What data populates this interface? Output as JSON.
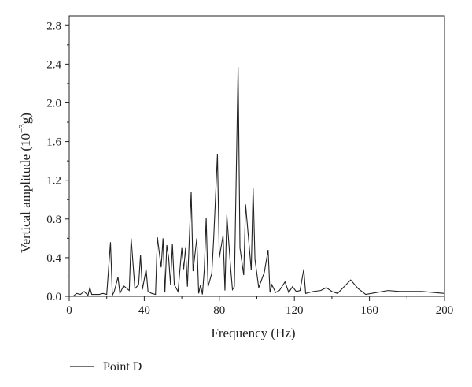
{
  "chart_data": {
    "type": "line",
    "title": "",
    "xlabel": "Frequency (Hz)",
    "ylabel_main": "Vertical amplitude (10",
    "ylabel_exp": "−3",
    "ylabel_tail": "g)",
    "xlim": [
      0,
      200
    ],
    "ylim": [
      0,
      2.9
    ],
    "x_ticks": [
      0,
      40,
      80,
      120,
      160,
      200
    ],
    "x_tick_labels": [
      "0",
      "40",
      "80",
      "120",
      "160",
      "200"
    ],
    "y_ticks": [
      0.0,
      0.4,
      0.8,
      1.2,
      1.6,
      2.0,
      2.4,
      2.8
    ],
    "y_tick_labels": [
      "0.0",
      "0.4",
      "0.8",
      "1.2",
      "1.6",
      "2.0",
      "2.4",
      "2.8"
    ],
    "grid": false,
    "legend_position": "bottom-left",
    "series": [
      {
        "name": "Point D",
        "color": "#222222",
        "x": [
          2,
          4,
          6,
          8,
          10,
          11,
          12,
          14,
          16,
          18,
          20,
          22,
          23,
          24,
          26,
          27,
          29,
          32,
          33,
          35,
          37,
          38,
          39,
          41,
          42,
          44,
          46,
          47,
          49,
          50,
          51,
          52,
          53,
          54,
          55,
          56,
          58,
          60,
          61,
          62,
          63,
          65,
          66,
          68,
          69,
          70,
          71,
          72,
          73,
          74,
          76,
          77,
          79,
          80,
          82,
          83,
          84,
          86,
          87,
          88,
          90,
          91,
          93,
          94,
          96,
          97,
          98,
          99,
          101,
          104,
          106,
          107,
          108,
          110,
          112,
          115,
          117,
          119,
          121,
          123,
          125,
          126,
          130,
          134,
          137,
          140,
          143,
          146,
          150,
          154,
          158,
          164,
          170,
          176,
          182,
          188,
          194,
          200
        ],
        "y": [
          0.0,
          0.03,
          0.02,
          0.05,
          0.01,
          0.09,
          0.02,
          0.02,
          0.02,
          0.03,
          0.02,
          0.56,
          0.01,
          0.05,
          0.2,
          0.03,
          0.11,
          0.06,
          0.6,
          0.08,
          0.12,
          0.43,
          0.07,
          0.28,
          0.05,
          0.03,
          0.02,
          0.61,
          0.3,
          0.6,
          0.04,
          0.53,
          0.4,
          0.12,
          0.54,
          0.12,
          0.05,
          0.5,
          0.28,
          0.5,
          0.1,
          1.08,
          0.26,
          0.6,
          0.03,
          0.12,
          0.02,
          0.28,
          0.81,
          0.1,
          0.24,
          0.6,
          1.47,
          0.4,
          0.63,
          0.06,
          0.84,
          0.3,
          0.07,
          0.1,
          2.37,
          0.5,
          0.22,
          0.95,
          0.5,
          0.27,
          1.12,
          0.38,
          0.09,
          0.25,
          0.48,
          0.04,
          0.12,
          0.04,
          0.06,
          0.15,
          0.04,
          0.1,
          0.05,
          0.06,
          0.28,
          0.03,
          0.05,
          0.06,
          0.09,
          0.05,
          0.03,
          0.09,
          0.17,
          0.08,
          0.02,
          0.04,
          0.06,
          0.05,
          0.05,
          0.05,
          0.04,
          0.03
        ]
      }
    ]
  }
}
